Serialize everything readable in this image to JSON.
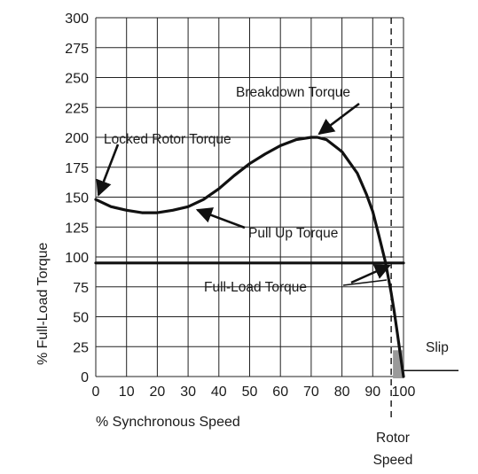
{
  "chart_data": {
    "type": "line",
    "title": "",
    "xlabel": "% Synchronous Speed",
    "ylabel": "% Full-Load Torque",
    "xlim": [
      0,
      100
    ],
    "ylim": [
      0,
      300
    ],
    "x_ticks": [
      "0",
      "10",
      "20",
      "30",
      "40",
      "50",
      "60",
      "70",
      "80",
      "90",
      "100"
    ],
    "y_ticks": [
      "300",
      "275",
      "250",
      "225",
      "200",
      "175",
      "150",
      "125",
      "100",
      "75",
      "50",
      "25",
      "0"
    ],
    "grid": true,
    "series": [
      {
        "x": [
          0,
          5,
          10,
          15,
          20,
          25,
          30,
          35,
          40,
          45,
          50,
          55,
          60,
          65,
          70,
          72,
          75,
          80,
          85,
          88,
          90,
          92,
          94,
          95,
          96,
          97,
          98,
          99,
          100
        ],
        "y": [
          148,
          142,
          139,
          137,
          137,
          139,
          142,
          148,
          157,
          168,
          178,
          186,
          193,
          198,
          200,
          200,
          198,
          188,
          170,
          152,
          138,
          118,
          97,
          84,
          70,
          54,
          36,
          18,
          0
        ],
        "color": "#111111"
      },
      {
        "x": [
          0,
          100
        ],
        "y": [
          95,
          95
        ],
        "color": "#111111"
      }
    ],
    "annotations": [
      {
        "text": "Locked Rotor Torque",
        "x": 0,
        "y": 148
      },
      {
        "text": "Breakdown Torque",
        "x": 72,
        "y": 200
      },
      {
        "text": "Pull Up Torque",
        "x": 33,
        "y": 143
      },
      {
        "text": "Full-Load Torque",
        "x": 96,
        "y": 95
      },
      {
        "text": "Slip",
        "x": 98,
        "y": 5
      },
      {
        "text": "Rotor Speed",
        "x": 96,
        "y": -35
      }
    ],
    "rotor_speed_x": 96
  }
}
